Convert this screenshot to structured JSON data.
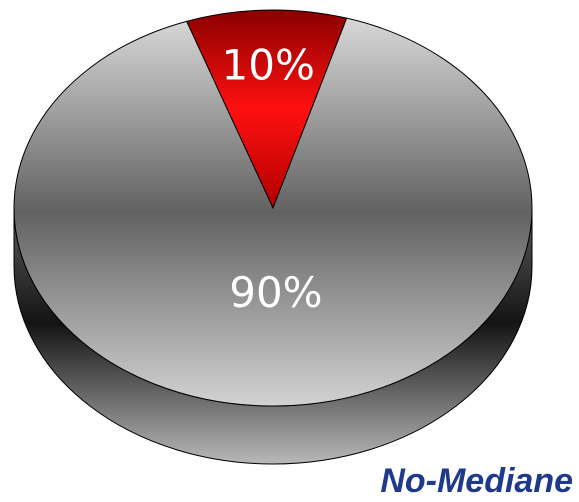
{
  "chart_data": {
    "type": "pie",
    "style": "3d",
    "slices": [
      {
        "label": "10%",
        "value": 10,
        "color": "#e00000"
      },
      {
        "label": "90%",
        "value": 90,
        "color": "#8f8f8f"
      }
    ],
    "caption": "No-Mediane",
    "caption_color": "#1f3a8a"
  }
}
